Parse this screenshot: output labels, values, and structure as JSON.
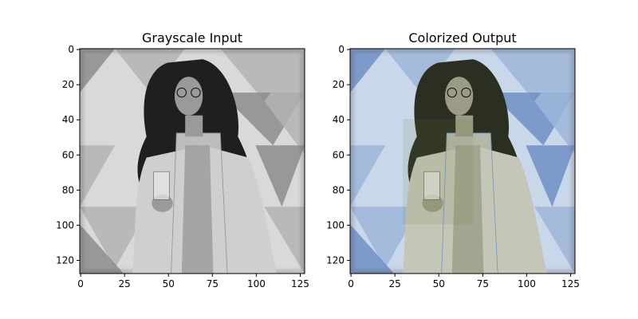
{
  "panels": [
    {
      "title": "Grayscale Input",
      "x_ticks": [
        "0",
        "25",
        "50",
        "75",
        "100",
        "125"
      ],
      "y_ticks": [
        "0",
        "20",
        "40",
        "60",
        "80",
        "100",
        "120"
      ],
      "mode": "grayscale",
      "description_colors": {
        "bg_light": "#d9d9d9",
        "bg_mid": "#b3b3b3",
        "bg_dark": "#8c8c8c",
        "hair": "#1f1f1f",
        "coat": "#cfcfcf",
        "skin": "#9a9a9a"
      }
    },
    {
      "title": "Colorized Output",
      "x_ticks": [
        "0",
        "25",
        "50",
        "75",
        "100",
        "125"
      ],
      "y_ticks": [
        "0",
        "20",
        "40",
        "60",
        "80",
        "100",
        "120"
      ],
      "mode": "colorized",
      "description_colors": {
        "bg_light": "#c9d7ea",
        "bg_mid": "#9fb6d9",
        "bg_dark": "#6f8fc4",
        "hair": "#2b2f22",
        "coat": "#c4c6b8",
        "skin": "#9c9c86"
      }
    }
  ]
}
